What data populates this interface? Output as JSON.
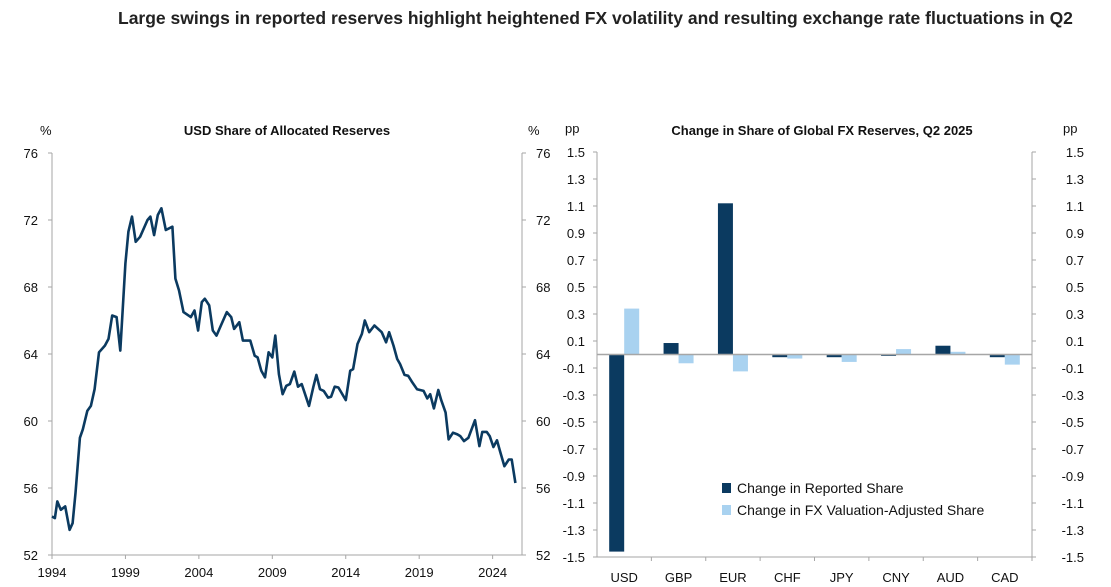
{
  "title": "Large swings in reported reserves highlight heightened FX volatility and resulting exchange rate fluctuations in Q2",
  "chart_data": [
    {
      "type": "line",
      "title": "USD Share of Allocated Reserves",
      "ylabel_left": "%",
      "ylabel_right": "%",
      "ylim": [
        52,
        76
      ],
      "yticks": [
        52,
        56,
        60,
        64,
        68,
        72,
        76
      ],
      "xlim": [
        1994,
        2026
      ],
      "xticks": [
        1994,
        1999,
        2004,
        2009,
        2014,
        2019,
        2024
      ],
      "color": "#0b3a60",
      "x": [
        1994.0,
        1994.2,
        1994.36,
        1994.6,
        1994.9,
        1995.2,
        1995.4,
        1995.6,
        1995.9,
        1996.1,
        1996.4,
        1996.65,
        1996.9,
        1997.2,
        1997.6,
        1997.85,
        1998.1,
        1998.4,
        1998.65,
        1999.0,
        1999.2,
        1999.45,
        1999.7,
        2000.0,
        2000.5,
        2000.7,
        2000.95,
        2001.2,
        2001.45,
        2001.75,
        2002.2,
        2002.4,
        2002.65,
        2002.95,
        2003.45,
        2003.7,
        2003.95,
        2004.2,
        2004.4,
        2004.7,
        2004.95,
        2005.2,
        2005.5,
        2005.9,
        2006.2,
        2006.4,
        2006.75,
        2007.0,
        2007.5,
        2007.8,
        2008.0,
        2008.25,
        2008.5,
        2008.75,
        2009.0,
        2009.2,
        2009.45,
        2009.7,
        2009.95,
        2010.2,
        2010.5,
        2010.75,
        2011.0,
        2011.5,
        2011.8,
        2012.0,
        2012.25,
        2012.5,
        2012.8,
        2013.0,
        2013.25,
        2013.5,
        2014.0,
        2014.3,
        2014.5,
        2014.8,
        2015.1,
        2015.3,
        2015.6,
        2015.95,
        2016.45,
        2016.75,
        2016.95,
        2017.25,
        2017.5,
        2017.7,
        2018.0,
        2018.25,
        2018.5,
        2018.85,
        2019.3,
        2019.55,
        2019.75,
        2020.0,
        2020.3,
        2020.5,
        2020.8,
        2021.0,
        2021.3,
        2021.6,
        2021.8,
        2022.05,
        2022.35,
        2022.8,
        2023.1,
        2023.3,
        2023.6,
        2023.8,
        2024.05,
        2024.3,
        2024.5,
        2024.8,
        2025.1,
        2025.3,
        2025.55
      ],
      "values": [
        54.3,
        54.2,
        55.2,
        54.7,
        54.9,
        53.5,
        53.9,
        55.7,
        59.0,
        59.5,
        60.6,
        60.9,
        61.9,
        64.1,
        64.5,
        64.9,
        66.3,
        66.2,
        64.2,
        69.4,
        71.3,
        72.2,
        70.7,
        71.0,
        72.0,
        72.2,
        71.1,
        72.3,
        72.7,
        71.4,
        71.6,
        68.5,
        67.8,
        66.5,
        66.2,
        66.6,
        65.4,
        67.1,
        67.3,
        66.9,
        65.4,
        65.1,
        65.7,
        66.5,
        66.2,
        65.5,
        65.9,
        64.8,
        64.8,
        63.9,
        63.8,
        63.0,
        62.6,
        64.1,
        63.8,
        65.1,
        62.8,
        61.6,
        62.1,
        62.2,
        62.95,
        62.05,
        62.2,
        60.9,
        62.05,
        62.75,
        61.9,
        61.8,
        61.4,
        61.45,
        62.05,
        62.0,
        61.25,
        63.0,
        63.1,
        64.6,
        65.2,
        66.0,
        65.3,
        65.7,
        65.3,
        64.7,
        65.3,
        64.5,
        63.7,
        63.4,
        62.75,
        62.7,
        62.35,
        61.9,
        61.8,
        61.35,
        61.6,
        60.75,
        61.85,
        61.25,
        60.5,
        58.9,
        59.3,
        59.2,
        59.1,
        58.8,
        59.0,
        60.05,
        58.5,
        59.35,
        59.35,
        59.1,
        58.45,
        58.85,
        58.2,
        57.3,
        57.7,
        57.7,
        56.3
      ]
    },
    {
      "type": "bar",
      "title": "Change in Share of Global FX Reserves,  Q2 2025",
      "ylabel_left": "pp",
      "ylabel_right": "pp",
      "ylim": [
        -1.5,
        1.5
      ],
      "yticks": [
        1.5,
        1.3,
        1.1,
        0.9,
        0.7,
        0.5,
        0.3,
        0.1,
        -0.1,
        -0.3,
        -0.5,
        -0.7,
        -0.9,
        -1.1,
        -1.3,
        -1.5
      ],
      "categories": [
        "USD",
        "GBP",
        "EUR",
        "CHF",
        "JPY",
        "CNY",
        "AUD",
        "CAD"
      ],
      "legend_position": "bottom-right",
      "series": [
        {
          "name": "Change in Reported Share",
          "color": "#0b3a60",
          "values": [
            -1.46,
            0.085,
            1.12,
            -0.02,
            -0.02,
            -0.01,
            0.065,
            -0.02
          ]
        },
        {
          "name": "Change in FX Valuation-Adjusted Share",
          "color": "#a9d2f0",
          "values": [
            0.34,
            -0.065,
            -0.125,
            -0.03,
            -0.055,
            0.04,
            0.02,
            -0.075
          ]
        }
      ]
    }
  ]
}
